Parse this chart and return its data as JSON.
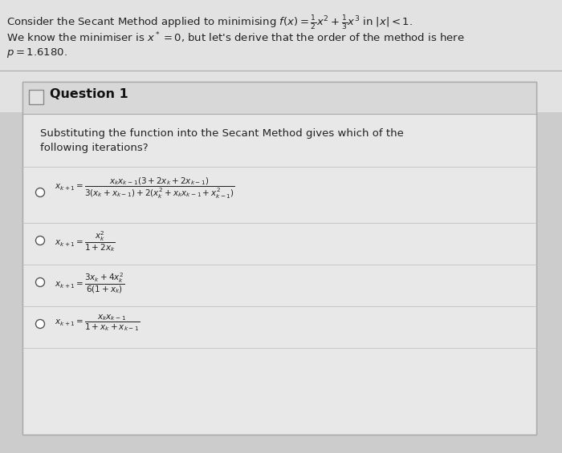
{
  "bg_top_color": "#c8c8c8",
  "bg_main_color": "#d0d0d0",
  "header_area_color": "#e8e8e8",
  "card_bg": "#e8e8e8",
  "card_header_bg": "#dedede",
  "card_body_bg": "#e8e8e8",
  "separator_color": "#aaaaaa",
  "card_border_color": "#aaaaaa",
  "title_text": "Consider the Secant Method applied to minimising $f(x) = \\frac{1}{2}x^2 + \\frac{1}{3}x^3$ in $|x| < 1$.",
  "title_line2": "We know the minimiser is $x^* = 0$, but let's derive that the order of the method is here",
  "title_line3": "$p = 1.6180$.",
  "question_label": "Question 1",
  "question_text_line1": "Substituting the function into the Secant Method gives which of the",
  "question_text_line2": "following iterations?",
  "option1": "$x_{k+1} = \\dfrac{x_k x_{k-1}(3+2x_k+2x_{k-1})}{3(x_k+x_{k-1})+2(x_k^2+x_k x_{k-1}+x_{k-1}^2)}$",
  "option2": "$x_{k+1} = \\dfrac{x_k^2}{1+2x_k}$",
  "option3": "$x_{k+1} = \\dfrac{3x_k+4x_k^2}{6(1+x_k)}$",
  "option4": "$x_{k+1} = \\dfrac{x_k x_{k-1}}{1+x_k+x_{k-1}}$",
  "text_color": "#222222",
  "title_fontsize": 9.5,
  "option_fontsize": 7.5,
  "question_fontsize": 9.5,
  "q_label_fontsize": 11.5
}
